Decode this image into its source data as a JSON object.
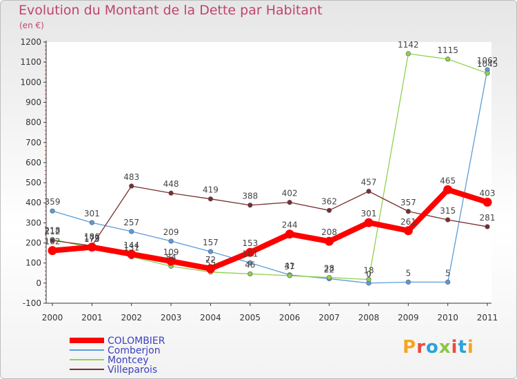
{
  "title": "Evolution du Montant de la Dette par Habitant",
  "unit_label": "(en €)",
  "logo": {
    "text": "Proxiti",
    "colors": [
      "#f5a623",
      "#e94c3d",
      "#2aa3d8",
      "#8cc63f",
      "#e94c3d",
      "#2aa3d8",
      "#f5a623"
    ]
  },
  "chart_data": {
    "type": "line",
    "x": [
      "2000",
      "2001",
      "2002",
      "2003",
      "2004",
      "2005",
      "2006",
      "2007",
      "2008",
      "2009",
      "2010",
      "2011"
    ],
    "ylim": [
      -100,
      1200
    ],
    "yticks": [
      -100,
      0,
      100,
      200,
      300,
      400,
      500,
      600,
      700,
      800,
      900,
      1000,
      1100,
      1200
    ],
    "grid": false,
    "legend": "bottom-left",
    "series": [
      {
        "name": "COLOMBIER",
        "color": "#ff0000",
        "width": 8,
        "values": [
          162,
          179,
          144,
          109,
          72,
          153,
          244,
          208,
          301,
          261,
          465,
          403
        ]
      },
      {
        "name": "Comberjon",
        "color": "#5b9bd5",
        "width": 1.3,
        "values": [
          359,
          301,
          257,
          209,
          157,
          101,
          41,
          22,
          0,
          5,
          5,
          1062
        ]
      },
      {
        "name": "Montcey",
        "color": "#8fd14f",
        "width": 1.3,
        "values": [
          218,
          175,
          131,
          84,
          55,
          46,
          37,
          28,
          18,
          1142,
          1115,
          1045
        ]
      },
      {
        "name": "Villeparois",
        "color": "#7a2e2e",
        "width": 1.3,
        "values": [
          212,
          186,
          483,
          448,
          419,
          388,
          402,
          362,
          457,
          357,
          315,
          281
        ]
      }
    ]
  }
}
